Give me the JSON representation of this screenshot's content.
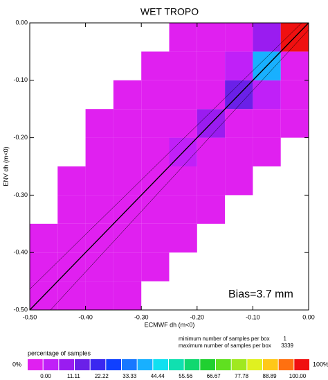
{
  "chart_data": {
    "type": "heatmap2d",
    "title": "WET TROPO",
    "x_label": "ECMWF dh (m<0)",
    "y_label": "ENV dh (m<0)",
    "xlim": [
      -0.5,
      0
    ],
    "ylim": [
      -0.5,
      0
    ],
    "xticks": [
      {
        "value": -0.5,
        "label": "-0.50"
      },
      {
        "value": -0.4,
        "label": "-0.40"
      },
      {
        "value": -0.3,
        "label": "-0.30"
      },
      {
        "value": -0.2,
        "label": "-0.20"
      },
      {
        "value": -0.1,
        "label": "-0.10"
      },
      {
        "value": 0,
        "label": "0.00"
      }
    ],
    "yticks": [
      {
        "value": -0.5,
        "label": "-0.50"
      },
      {
        "value": -0.4,
        "label": "-0.40"
      },
      {
        "value": -0.3,
        "label": "-0.30"
      },
      {
        "value": -0.2,
        "label": "-0.20"
      },
      {
        "value": -0.1,
        "label": "-0.10"
      },
      {
        "value": 0,
        "label": "0.00"
      }
    ],
    "x_bins": [
      -0.5,
      -0.45,
      -0.4,
      -0.35,
      -0.3,
      -0.25,
      -0.2,
      -0.15,
      -0.1,
      -0.05,
      0
    ],
    "y_bins": [
      -0.5,
      -0.45,
      -0.4,
      -0.35,
      -0.3,
      -0.25,
      -0.2,
      -0.15,
      -0.1,
      -0.05,
      0
    ],
    "values": [
      [
        0.3,
        0.5,
        0.3,
        0.2,
        null,
        null,
        null,
        null,
        null,
        null
      ],
      [
        0.5,
        0.5,
        0.8,
        0.5,
        0.2,
        null,
        null,
        null,
        null,
        null
      ],
      [
        0.2,
        0.8,
        1,
        1.5,
        0.8,
        0.3,
        null,
        null,
        null,
        null
      ],
      [
        null,
        0.3,
        1.5,
        3,
        2,
        1,
        0.3,
        null,
        null,
        null
      ],
      [
        null,
        0.2,
        0.8,
        2,
        5,
        3,
        1,
        0.3,
        null,
        null
      ],
      [
        null,
        null,
        0.3,
        1,
        3,
        8,
        4,
        1,
        0.2,
        null
      ],
      [
        null,
        null,
        0.2,
        0.5,
        1,
        4,
        12,
        5,
        1,
        0.2
      ],
      [
        null,
        null,
        null,
        0.2,
        0.5,
        1.5,
        5,
        20,
        8,
        0.5
      ],
      [
        null,
        null,
        null,
        null,
        0.2,
        0.5,
        1.5,
        8,
        40,
        3
      ],
      [
        null,
        null,
        null,
        null,
        null,
        0.2,
        0.3,
        1,
        15,
        100
      ]
    ],
    "annotation": "Bias=3.7 mm",
    "min_samples_label": "minimum number of samples per box",
    "min_samples": 1,
    "max_samples_label": "maximum number of samples per box",
    "max_samples": 3339,
    "colorbar_title": "percentage of samples",
    "colorbar_min_label": "0%",
    "colorbar_max_label": "100%",
    "colorbar_lim": [
      0,
      100
    ],
    "colorbar_ticks": [
      {
        "value": 0,
        "label": "0.00"
      },
      {
        "value": 11.11,
        "label": "11.11"
      },
      {
        "value": 22.22,
        "label": "22.22"
      },
      {
        "value": 33.33,
        "label": "33.33"
      },
      {
        "value": 44.44,
        "label": "44.44"
      },
      {
        "value": 55.56,
        "label": "55.56"
      },
      {
        "value": 66.67,
        "label": "66.67"
      },
      {
        "value": 77.78,
        "label": "77.78"
      },
      {
        "value": 88.89,
        "label": "88.89"
      },
      {
        "value": 100,
        "label": "100.00"
      }
    ],
    "colormap": [
      "#e020f0",
      "#c020f8",
      "#9a1cf0",
      "#6a20e8",
      "#3a28f0",
      "#1040ff",
      "#1878ff",
      "#18b0ff",
      "#10e0f0",
      "#10e0b0",
      "#10d870",
      "#20d030",
      "#60e020",
      "#a0e820",
      "#e0f020",
      "#ffc818",
      "#ff7010",
      "#f01010"
    ]
  }
}
